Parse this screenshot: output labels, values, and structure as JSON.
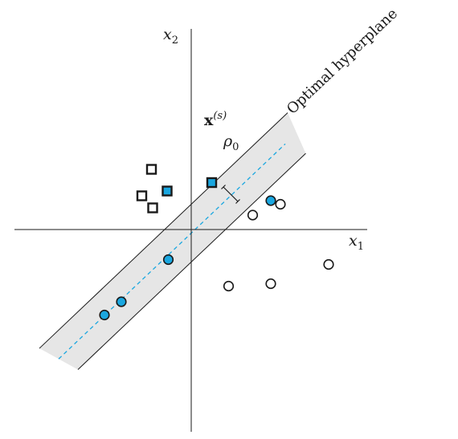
{
  "labels": {
    "x1_var": "x",
    "x1_sub": "1",
    "x2_var": "x",
    "x2_sub": "2",
    "support_vector_main": "x",
    "support_vector_sup": "(s)",
    "margin_var": "ρ",
    "margin_sub": "0",
    "hyperplane": "Optimal hyperplane"
  },
  "colors": {
    "axes": "#1a1a1a",
    "margin_band": "#e6e6e6",
    "support_vector_fill": "#1aa7e0",
    "hyperplane_dash": "#1aa7e0",
    "open_marker_fill": "#ffffff",
    "stroke": "#1a1a1a"
  },
  "chart_data": {
    "type": "scatter",
    "series": [
      {
        "marker": "square",
        "points": [
          [
            -1.65,
            2.5
          ],
          [
            -2.05,
            1.4
          ],
          [
            -1.0,
            1.6
          ],
          [
            0.85,
            1.95
          ],
          [
            -1.6,
            0.9
          ]
        ],
        "support_vectors": [
          [
            -1.0,
            1.6
          ],
          [
            0.85,
            1.95
          ]
        ]
      },
      {
        "marker": "circle",
        "points": [
          [
            3.3,
            1.2
          ],
          [
            3.7,
            1.05
          ],
          [
            2.55,
            0.6
          ],
          [
            5.7,
            -1.45
          ],
          [
            3.3,
            -2.25
          ],
          [
            1.55,
            -2.35
          ],
          [
            -0.95,
            -1.25
          ],
          [
            -2.9,
            -3.0
          ],
          [
            -3.6,
            -3.55
          ]
        ],
        "support_vectors": [
          [
            3.3,
            1.2
          ],
          [
            -0.95,
            -1.25
          ],
          [
            -2.9,
            -3.0
          ],
          [
            -3.6,
            -3.55
          ]
        ]
      }
    ],
    "hyperplane": {
      "slope": 0.95,
      "intercept": -0.15
    },
    "margin_offset": 1.2,
    "x_range": [
      -7,
      7.4
    ],
    "y_range": [
      -8.2,
      8.4
    ],
    "axes_unlabeled_ticks": true
  }
}
